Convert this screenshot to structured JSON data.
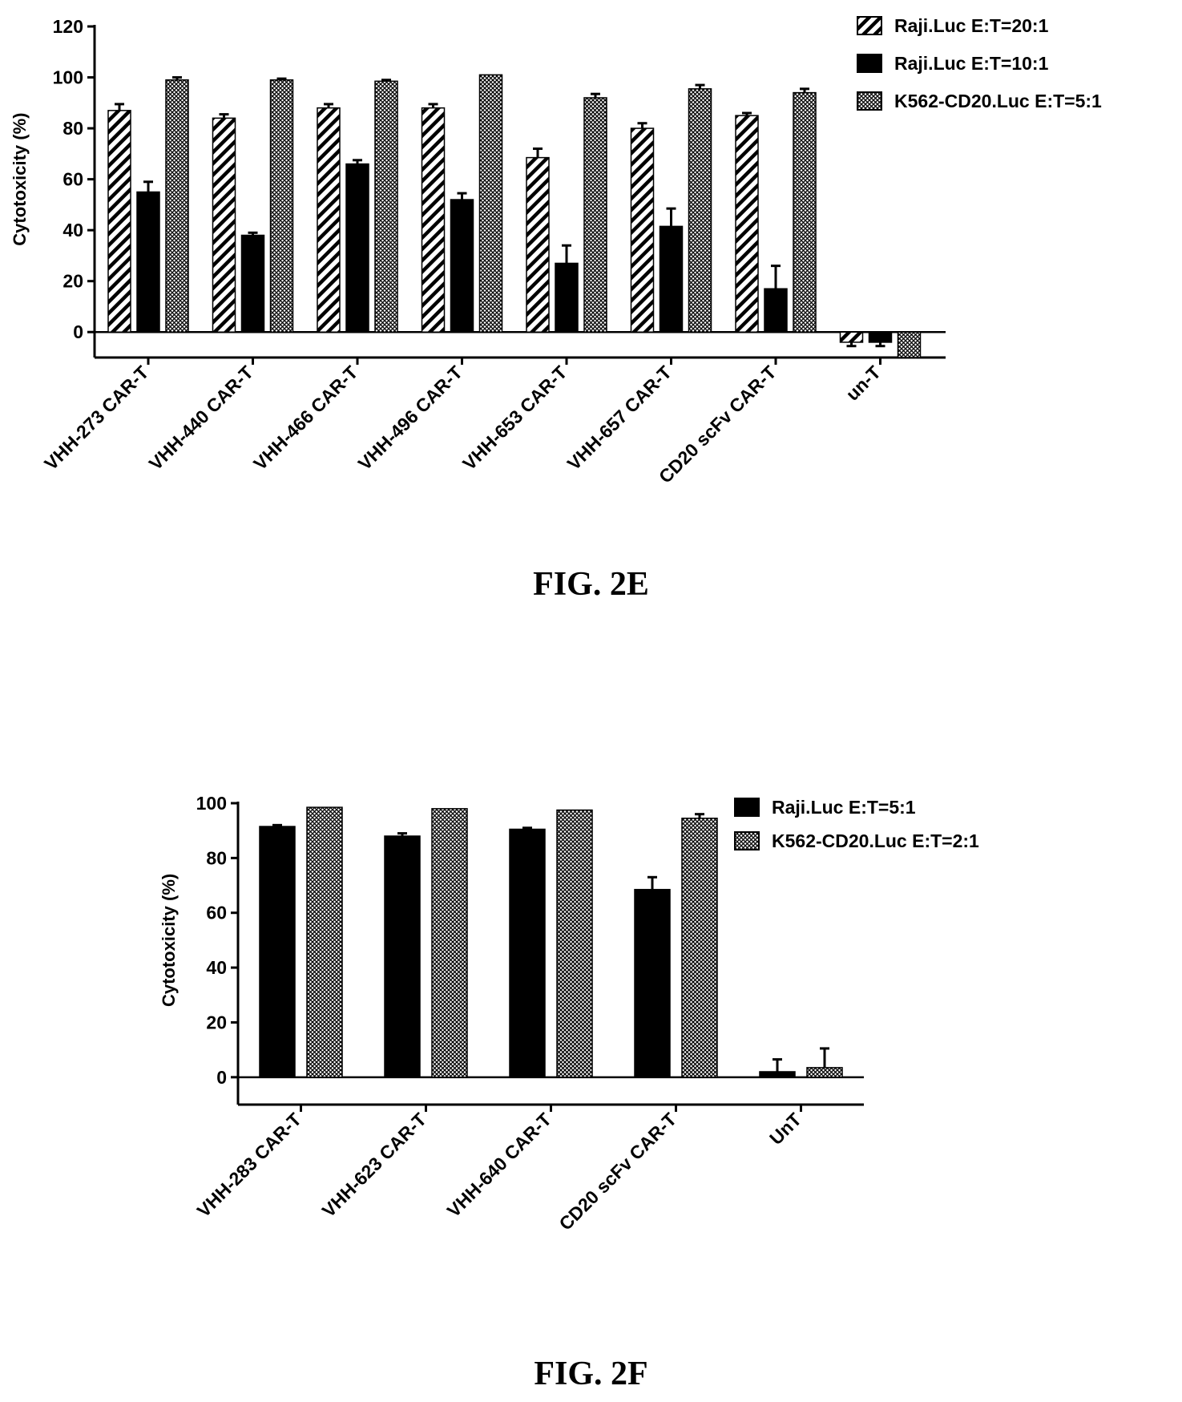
{
  "figures": [
    {
      "caption": "FIG. 2E"
    },
    {
      "caption": "FIG. 2F"
    }
  ],
  "colors": {
    "ink": "#000000",
    "background": "#ffffff"
  },
  "chart_data": [
    {
      "type": "bar",
      "title": "",
      "xlabel": "",
      "ylabel": "Cytotoxicity (%)",
      "ylim": [
        -10,
        120
      ],
      "yticks": [
        0,
        20,
        40,
        60,
        80,
        100,
        120
      ],
      "legend_position": "top-right",
      "categories": [
        "VHH-273 CAR-T",
        "VHH-440 CAR-T",
        "VHH-466 CAR-T",
        "VHH-496 CAR-T",
        "VHH-653 CAR-T",
        "VHH-657 CAR-T",
        "CD20 scFv CAR-T",
        "un-T"
      ],
      "series": [
        {
          "name": "Raji.Luc E:T=20:1",
          "pattern": "diagonal-hatch",
          "values": [
            87,
            84,
            88,
            88,
            68.5,
            80,
            85,
            -4
          ],
          "errors": [
            2.5,
            1.5,
            1.5,
            1.5,
            3.5,
            2.0,
            1.0,
            1.5
          ]
        },
        {
          "name": "Raji.Luc E:T=10:1",
          "pattern": "solid",
          "values": [
            55,
            38,
            66,
            52,
            27,
            41.5,
            17,
            -4
          ],
          "errors": [
            4,
            1,
            1.5,
            2.5,
            7,
            7,
            9,
            1.5
          ]
        },
        {
          "name": "K562-CD20.Luc E:T=5:1",
          "pattern": "crosshatch",
          "values": [
            99,
            99,
            98.5,
            101,
            92,
            95.5,
            94,
            -10
          ],
          "errors": [
            1,
            0.5,
            0.5,
            0,
            1.5,
            1.5,
            1.5,
            0
          ]
        }
      ]
    },
    {
      "type": "bar",
      "title": "",
      "xlabel": "",
      "ylabel": "Cytotoxicity (%)",
      "ylim": [
        -10,
        100
      ],
      "yticks": [
        0,
        20,
        40,
        60,
        80,
        100
      ],
      "legend_position": "top-right",
      "categories": [
        "VHH-283 CAR-T",
        "VHH-623 CAR-T",
        "VHH-640 CAR-T",
        "CD20 scFv CAR-T",
        "UnT"
      ],
      "series": [
        {
          "name": "Raji.Luc E:T=5:1",
          "pattern": "solid",
          "values": [
            91.5,
            88,
            90.5,
            68.5,
            2
          ],
          "errors": [
            0.5,
            1,
            0.5,
            4.5,
            4.5
          ]
        },
        {
          "name": "K562-CD20.Luc E:T=2:1",
          "pattern": "crosshatch",
          "values": [
            98.5,
            98,
            97.5,
            94.5,
            3.5
          ],
          "errors": [
            0,
            0,
            0,
            1.5,
            7
          ]
        }
      ]
    }
  ]
}
